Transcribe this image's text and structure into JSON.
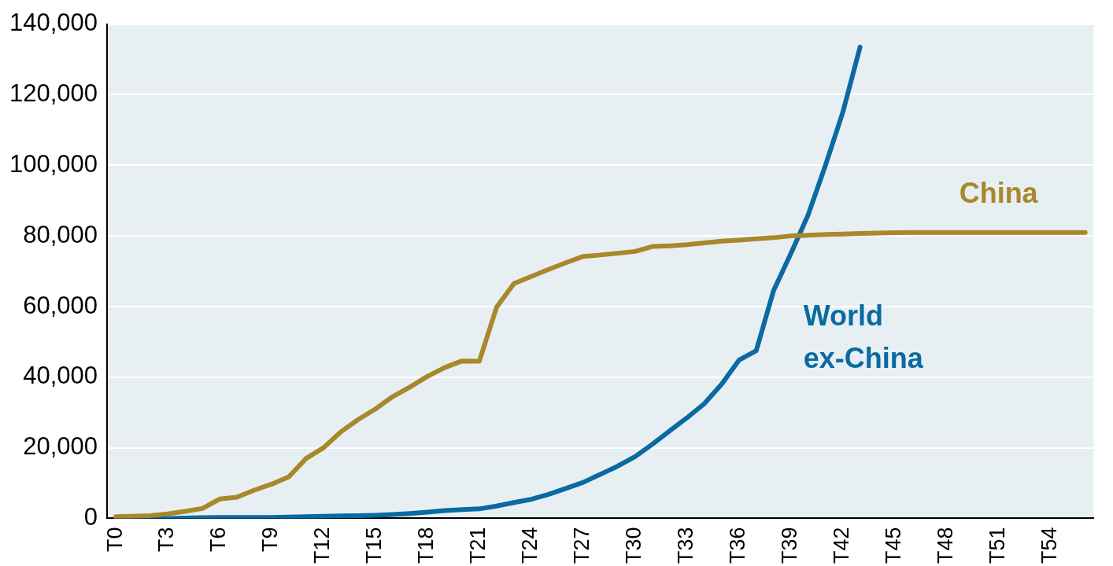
{
  "chart_data": {
    "type": "line",
    "categories": [
      "T0",
      null,
      null,
      "T3",
      null,
      null,
      "T6",
      null,
      null,
      "T9",
      null,
      null,
      "T12",
      null,
      null,
      "T15",
      null,
      null,
      "T18",
      null,
      null,
      "T21",
      null,
      null,
      "T24",
      null,
      null,
      "T27",
      null,
      null,
      "T30",
      null,
      null,
      "T33",
      null,
      null,
      "T36",
      null,
      null,
      "T39",
      null,
      null,
      "T42",
      null,
      null,
      "T45",
      null,
      null,
      "T48",
      null,
      null,
      "T51",
      null,
      null,
      "T54",
      null,
      null
    ],
    "series": [
      {
        "name": "China",
        "color": "#a8882a",
        "values": [
          500,
          600,
          800,
          1300,
          2000,
          2800,
          5500,
          6000,
          8000,
          9700,
          11800,
          17000,
          20000,
          24500,
          28000,
          31000,
          34500,
          37200,
          40200,
          42700,
          44600,
          44500,
          59800,
          66500,
          68500,
          70500,
          72400,
          74200,
          74600,
          75100,
          75600,
          77000,
          77200,
          77500,
          78000,
          78500,
          78800,
          79200,
          79500,
          80000,
          80200,
          80400,
          80500,
          80700,
          80800,
          80900,
          81000,
          81000,
          81000,
          81000,
          81000,
          81000,
          81000,
          81000,
          81000,
          81000,
          81000
        ]
      },
      {
        "name": "World ex-China",
        "color": "#0a6aa1",
        "values": [
          0,
          0,
          0,
          0,
          100,
          200,
          300,
          300,
          300,
          300,
          400,
          500,
          600,
          700,
          800,
          900,
          1100,
          1400,
          1800,
          2200,
          2500,
          2700,
          3500,
          4500,
          5400,
          6800,
          8500,
          10200,
          12500,
          14800,
          17500,
          21000,
          24800,
          28500,
          32500,
          38000,
          44800,
          47500,
          64500,
          75000,
          86000,
          100000,
          115000,
          133500,
          null,
          null,
          null,
          null,
          null,
          null,
          null,
          null,
          null,
          null,
          null,
          null,
          null
        ]
      }
    ],
    "ylim": [
      0,
      140000
    ],
    "yticks": [
      0,
      {
        "value": 20000,
        "label": "20,000"
      },
      {
        "value": 40000,
        "label": "40,000"
      },
      {
        "value": 60000,
        "label": "60,000"
      },
      {
        "value": 80000,
        "label": "80,000"
      },
      {
        "value": 100000,
        "label": "100,000"
      },
      {
        "value": 120000,
        "label": "120,000"
      },
      {
        "value": 140000,
        "label": "140,000"
      }
    ],
    "grid": "y",
    "legend": false
  }
}
